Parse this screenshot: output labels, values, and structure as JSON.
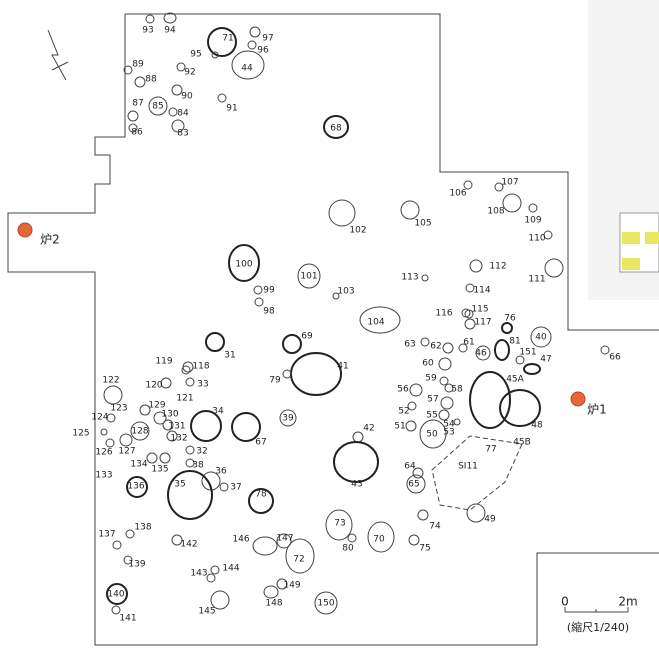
{
  "features": [
    {
      "label": "93"
    },
    {
      "label": "94"
    },
    {
      "label": "71"
    },
    {
      "label": "95"
    },
    {
      "label": "97"
    },
    {
      "label": "96"
    },
    {
      "label": "44"
    },
    {
      "label": "89"
    },
    {
      "label": "92"
    },
    {
      "label": "88"
    },
    {
      "label": "90"
    },
    {
      "label": "87"
    },
    {
      "label": "85"
    },
    {
      "label": "84"
    },
    {
      "label": "91"
    },
    {
      "label": "86"
    },
    {
      "label": "83"
    },
    {
      "label": "68"
    },
    {
      "label": "106"
    },
    {
      "label": "107"
    },
    {
      "label": "108"
    },
    {
      "label": "105"
    },
    {
      "label": "102"
    },
    {
      "label": "109"
    },
    {
      "label": "110"
    },
    {
      "label": "112"
    },
    {
      "label": "100"
    },
    {
      "label": "101"
    },
    {
      "label": "113"
    },
    {
      "label": "111"
    },
    {
      "label": "99"
    },
    {
      "label": "103"
    },
    {
      "label": "114"
    },
    {
      "label": "98"
    },
    {
      "label": "104"
    },
    {
      "label": "116"
    },
    {
      "label": "115"
    },
    {
      "label": "117"
    },
    {
      "label": "76"
    },
    {
      "label": "69"
    },
    {
      "label": "63"
    },
    {
      "label": "61"
    },
    {
      "label": "81"
    },
    {
      "label": "40"
    },
    {
      "label": "46"
    },
    {
      "label": "31"
    },
    {
      "label": "62"
    },
    {
      "label": "151"
    },
    {
      "label": "47"
    },
    {
      "label": "66"
    },
    {
      "label": "41"
    },
    {
      "label": "119"
    },
    {
      "label": "118"
    },
    {
      "label": "60"
    },
    {
      "label": "45A"
    },
    {
      "label": "59"
    },
    {
      "label": "58"
    },
    {
      "label": "79"
    },
    {
      "label": "120"
    },
    {
      "label": "33"
    },
    {
      "label": "122"
    },
    {
      "label": "121"
    },
    {
      "label": "56"
    },
    {
      "label": "57"
    },
    {
      "label": "129"
    },
    {
      "label": "123"
    },
    {
      "label": "34"
    },
    {
      "label": "52"
    },
    {
      "label": "130"
    },
    {
      "label": "55"
    },
    {
      "label": "124"
    },
    {
      "label": "131"
    },
    {
      "label": "39"
    },
    {
      "label": "48"
    },
    {
      "label": "51"
    },
    {
      "label": "54"
    },
    {
      "label": "50"
    },
    {
      "label": "53"
    },
    {
      "label": "128"
    },
    {
      "label": "67"
    },
    {
      "label": "42"
    },
    {
      "label": "132"
    },
    {
      "label": "125"
    },
    {
      "label": "127"
    },
    {
      "label": "77"
    },
    {
      "label": "45B"
    },
    {
      "label": "32"
    },
    {
      "label": "126"
    },
    {
      "label": "134"
    },
    {
      "label": "135"
    },
    {
      "label": "38"
    },
    {
      "label": "43"
    },
    {
      "label": "64"
    },
    {
      "label": "36"
    },
    {
      "label": "133"
    },
    {
      "label": "65"
    },
    {
      "label": "136"
    },
    {
      "label": "35"
    },
    {
      "label": "37"
    },
    {
      "label": "78"
    },
    {
      "label": "SI11"
    },
    {
      "label": "74"
    },
    {
      "label": "49"
    },
    {
      "label": "73"
    },
    {
      "label": "80"
    },
    {
      "label": "70"
    },
    {
      "label": "137"
    },
    {
      "label": "138"
    },
    {
      "label": "146"
    },
    {
      "label": "147"
    },
    {
      "label": "72"
    },
    {
      "label": "75"
    },
    {
      "label": "142"
    },
    {
      "label": "139"
    },
    {
      "label": "143"
    },
    {
      "label": "144"
    },
    {
      "label": "149"
    },
    {
      "label": "148"
    },
    {
      "label": "145"
    },
    {
      "label": "150"
    },
    {
      "label": "140"
    },
    {
      "label": "141"
    }
  ],
  "hearths": [
    {
      "label": "炉1"
    },
    {
      "label": "炉2"
    }
  ],
  "scale": {
    "start": "0",
    "end": "2m",
    "note": "(縮尺1/240)"
  }
}
